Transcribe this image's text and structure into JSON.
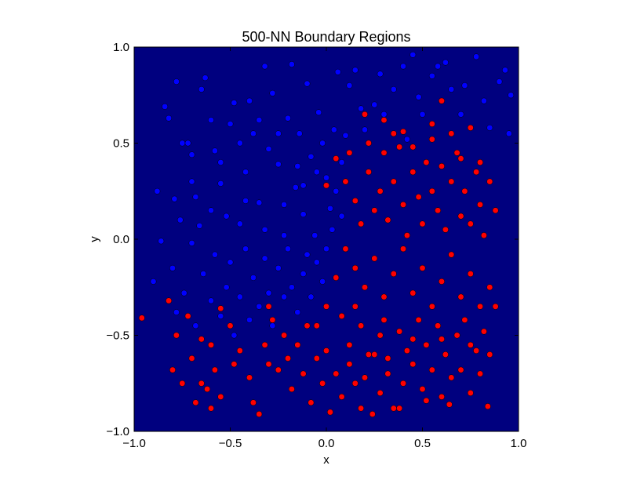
{
  "chart_data": {
    "type": "scatter",
    "title": "500-NN Boundary Regions",
    "xlabel": "x",
    "ylabel": "y",
    "xlim": [
      -1.0,
      1.0
    ],
    "ylim": [
      -1.0,
      1.0
    ],
    "xticks": [
      "−1.0",
      "−0.5",
      "0.0",
      "0.5",
      "1.0"
    ],
    "yticks": [
      "−1.0",
      "−0.5",
      "0.0",
      "0.5",
      "1.0"
    ],
    "background_color": "#00007f",
    "grid": false,
    "series": [
      {
        "color": "#0000ff",
        "points": [
          [
            -0.88,
            0.25
          ],
          [
            -0.84,
            0.69
          ],
          [
            -0.82,
            0.63
          ],
          [
            -0.79,
            0.21
          ],
          [
            -0.78,
            0.82
          ],
          [
            -0.75,
            0.5
          ],
          [
            -0.72,
            0.5
          ],
          [
            -0.7,
            0.44
          ],
          [
            -0.68,
            0.22
          ],
          [
            -0.66,
            0.07
          ],
          [
            -0.65,
            0.78
          ],
          [
            -0.63,
            0.84
          ],
          [
            -0.6,
            0.62
          ],
          [
            -0.58,
            0.46
          ],
          [
            -0.55,
            0.29
          ],
          [
            -0.52,
            0.12
          ],
          [
            -0.5,
            0.6
          ],
          [
            -0.48,
            0.71
          ],
          [
            -0.45,
            0.08
          ],
          [
            -0.42,
            0.35
          ],
          [
            -0.4,
            0.72
          ],
          [
            -0.38,
            0.55
          ],
          [
            -0.35,
            0.19
          ],
          [
            -0.32,
            0.9
          ],
          [
            -0.3,
            0.47
          ],
          [
            -0.28,
            0.76
          ],
          [
            -0.25,
            0.39
          ],
          [
            -0.22,
            0.02
          ],
          [
            -0.2,
            0.63
          ],
          [
            -0.18,
            0.91
          ],
          [
            -0.16,
            0.27
          ],
          [
            -0.14,
            0.55
          ],
          [
            -0.12,
            0.13
          ],
          [
            -0.1,
            0.81
          ],
          [
            -0.08,
            0.43
          ],
          [
            -0.06,
            0.02
          ],
          [
            -0.04,
            0.66
          ],
          [
            -0.02,
            0.5
          ],
          [
            0.0,
            0.32
          ],
          [
            0.02,
            0.16
          ],
          [
            0.04,
            0.57
          ],
          [
            0.06,
            0.87
          ],
          [
            0.08,
            0.4
          ],
          [
            0.1,
            0.54
          ],
          [
            0.12,
            0.8
          ],
          [
            0.15,
            0.88
          ],
          [
            0.18,
            0.68
          ],
          [
            0.2,
            0.57
          ],
          [
            0.25,
            0.7
          ],
          [
            0.28,
            0.86
          ],
          [
            0.3,
            0.65
          ],
          [
            0.35,
            0.78
          ],
          [
            0.4,
            0.9
          ],
          [
            0.42,
            0.52
          ],
          [
            0.45,
            0.96
          ],
          [
            0.48,
            0.74
          ],
          [
            0.5,
            0.65
          ],
          [
            0.55,
            0.85
          ],
          [
            0.58,
            0.9
          ],
          [
            0.62,
            0.92
          ],
          [
            0.65,
            0.78
          ],
          [
            0.7,
            0.65
          ],
          [
            0.72,
            0.8
          ],
          [
            0.78,
            0.95
          ],
          [
            0.82,
            0.72
          ],
          [
            0.85,
            0.58
          ],
          [
            0.9,
            0.82
          ],
          [
            0.93,
            0.88
          ],
          [
            0.95,
            0.55
          ],
          [
            0.96,
            0.75
          ],
          [
            -0.9,
            -0.22
          ],
          [
            -0.86,
            -0.01
          ],
          [
            -0.8,
            -0.15
          ],
          [
            -0.78,
            -0.38
          ],
          [
            -0.74,
            -0.28
          ],
          [
            -0.7,
            -0.02
          ],
          [
            -0.68,
            -0.45
          ],
          [
            -0.64,
            -0.18
          ],
          [
            -0.6,
            -0.32
          ],
          [
            -0.58,
            -0.08
          ],
          [
            -0.55,
            -0.4
          ],
          [
            -0.52,
            -0.25
          ],
          [
            -0.5,
            -0.12
          ],
          [
            -0.48,
            -0.5
          ],
          [
            -0.45,
            -0.3
          ],
          [
            -0.42,
            -0.05
          ],
          [
            -0.4,
            -0.42
          ],
          [
            -0.38,
            -0.2
          ],
          [
            -0.35,
            -0.35
          ],
          [
            -0.32,
            -0.1
          ],
          [
            -0.3,
            -0.28
          ],
          [
            -0.28,
            -0.45
          ],
          [
            -0.25,
            -0.15
          ],
          [
            -0.22,
            -0.3
          ],
          [
            -0.2,
            -0.05
          ],
          [
            -0.18,
            -0.25
          ],
          [
            -0.15,
            -0.38
          ],
          [
            -0.12,
            -0.18
          ],
          [
            -0.1,
            -0.08
          ],
          [
            -0.08,
            -0.3
          ],
          [
            -0.05,
            -0.12
          ],
          [
            -0.02,
            -0.22
          ],
          [
            0.0,
            -0.05
          ],
          [
            0.03,
            0.05
          ],
          [
            -0.55,
            0.4
          ],
          [
            -0.6,
            0.15
          ],
          [
            -0.45,
            0.5
          ],
          [
            -0.35,
            0.62
          ],
          [
            -0.25,
            0.55
          ],
          [
            -0.15,
            0.38
          ],
          [
            -0.05,
            0.35
          ],
          [
            0.05,
            0.25
          ],
          [
            -0.42,
            0.2
          ],
          [
            -0.32,
            0.05
          ],
          [
            -0.22,
            0.18
          ],
          [
            -0.12,
            0.28
          ],
          [
            0.08,
            0.12
          ],
          [
            0.1,
            0.3
          ],
          [
            -0.7,
            0.3
          ],
          [
            -0.76,
            0.1
          ]
        ]
      },
      {
        "color": "#ff0000",
        "points": [
          [
            0.05,
            0.42
          ],
          [
            0.1,
            0.3
          ],
          [
            0.15,
            0.2
          ],
          [
            0.18,
            0.08
          ],
          [
            0.22,
            0.35
          ],
          [
            0.25,
            0.15
          ],
          [
            0.28,
            0.25
          ],
          [
            0.3,
            0.45
          ],
          [
            0.32,
            0.1
          ],
          [
            0.35,
            0.3
          ],
          [
            0.38,
            0.48
          ],
          [
            0.4,
            0.18
          ],
          [
            0.42,
            0.02
          ],
          [
            0.45,
            0.35
          ],
          [
            0.48,
            0.22
          ],
          [
            0.5,
            0.08
          ],
          [
            0.52,
            0.4
          ],
          [
            0.55,
            0.25
          ],
          [
            0.58,
            0.15
          ],
          [
            0.6,
            0.38
          ],
          [
            0.62,
            0.05
          ],
          [
            0.65,
            0.3
          ],
          [
            0.68,
            0.45
          ],
          [
            0.7,
            0.12
          ],
          [
            0.72,
            0.25
          ],
          [
            0.75,
            0.08
          ],
          [
            0.78,
            0.35
          ],
          [
            0.8,
            0.18
          ],
          [
            0.82,
            0.02
          ],
          [
            0.85,
            0.3
          ],
          [
            0.88,
            0.15
          ],
          [
            0.22,
            0.5
          ],
          [
            0.4,
            0.56
          ],
          [
            0.55,
            0.6
          ],
          [
            0.6,
            0.72
          ],
          [
            0.2,
            0.65
          ],
          [
            0.1,
            -0.05
          ],
          [
            0.15,
            -0.15
          ],
          [
            0.2,
            -0.25
          ],
          [
            0.25,
            -0.1
          ],
          [
            0.3,
            -0.3
          ],
          [
            0.35,
            -0.18
          ],
          [
            0.4,
            -0.05
          ],
          [
            0.45,
            -0.28
          ],
          [
            0.5,
            -0.15
          ],
          [
            0.55,
            -0.35
          ],
          [
            0.6,
            -0.22
          ],
          [
            0.65,
            -0.08
          ],
          [
            0.7,
            -0.3
          ],
          [
            0.75,
            -0.18
          ],
          [
            0.8,
            -0.35
          ],
          [
            0.85,
            -0.25
          ],
          [
            0.05,
            -0.2
          ],
          [
            0.0,
            -0.35
          ],
          [
            -0.05,
            -0.45
          ],
          [
            0.08,
            -0.4
          ],
          [
            0.12,
            -0.55
          ],
          [
            0.18,
            -0.45
          ],
          [
            0.22,
            -0.6
          ],
          [
            0.28,
            -0.5
          ],
          [
            0.32,
            -0.62
          ],
          [
            0.38,
            -0.48
          ],
          [
            0.42,
            -0.58
          ],
          [
            0.48,
            -0.42
          ],
          [
            0.52,
            -0.55
          ],
          [
            0.58,
            -0.45
          ],
          [
            0.62,
            -0.6
          ],
          [
            0.68,
            -0.5
          ],
          [
            0.72,
            -0.42
          ],
          [
            0.78,
            -0.58
          ],
          [
            0.82,
            -0.48
          ],
          [
            0.88,
            -0.35
          ],
          [
            0.85,
            -0.6
          ],
          [
            -0.96,
            -0.41
          ],
          [
            -0.82,
            -0.32
          ],
          [
            -0.8,
            -0.68
          ],
          [
            -0.78,
            -0.5
          ],
          [
            -0.75,
            -0.75
          ],
          [
            -0.72,
            -0.4
          ],
          [
            -0.7,
            -0.62
          ],
          [
            -0.68,
            -0.85
          ],
          [
            -0.65,
            -0.52
          ],
          [
            -0.62,
            -0.78
          ],
          [
            -0.6,
            -0.88
          ],
          [
            -0.58,
            -0.68
          ],
          [
            -0.55,
            -0.82
          ],
          [
            -0.55,
            -0.36
          ],
          [
            -0.5,
            -0.45
          ],
          [
            -0.45,
            -0.58
          ],
          [
            -0.4,
            -0.72
          ],
          [
            -0.38,
            -0.85
          ],
          [
            -0.35,
            -0.91
          ],
          [
            -0.32,
            -0.55
          ],
          [
            -0.3,
            -0.65
          ],
          [
            -0.28,
            -0.42
          ],
          [
            -0.25,
            -0.68
          ],
          [
            -0.22,
            -0.5
          ],
          [
            -0.2,
            -0.62
          ],
          [
            -0.18,
            -0.78
          ],
          [
            -0.15,
            -0.55
          ],
          [
            -0.12,
            -0.7
          ],
          [
            -0.1,
            -0.45
          ],
          [
            -0.08,
            -0.85
          ],
          [
            -0.05,
            -0.62
          ],
          [
            -0.02,
            -0.75
          ],
          [
            0.0,
            -0.58
          ],
          [
            0.05,
            -0.7
          ],
          [
            0.08,
            -0.82
          ],
          [
            0.12,
            -0.65
          ],
          [
            0.15,
            -0.75
          ],
          [
            0.18,
            -0.88
          ],
          [
            0.2,
            -0.72
          ],
          [
            0.25,
            -0.6
          ],
          [
            0.28,
            -0.8
          ],
          [
            0.32,
            -0.7
          ],
          [
            0.35,
            -0.88
          ],
          [
            0.4,
            -0.75
          ],
          [
            0.45,
            -0.65
          ],
          [
            0.5,
            -0.78
          ],
          [
            0.55,
            -0.68
          ],
          [
            0.6,
            -0.82
          ],
          [
            0.65,
            -0.72
          ],
          [
            0.7,
            -0.68
          ],
          [
            0.75,
            -0.8
          ],
          [
            0.8,
            -0.7
          ],
          [
            0.84,
            -0.87
          ],
          [
            0.02,
            -0.9
          ],
          [
            0.24,
            -0.91
          ],
          [
            0.38,
            -0.88
          ],
          [
            0.52,
            -0.84
          ],
          [
            0.64,
            -0.86
          ],
          [
            0.75,
            -0.55
          ],
          [
            0.6,
            -0.52
          ],
          [
            0.45,
            -0.52
          ],
          [
            0.3,
            -0.42
          ],
          [
            0.15,
            -0.35
          ],
          [
            -0.3,
            -0.35
          ],
          [
            -0.6,
            -0.55
          ],
          [
            -0.65,
            -0.75
          ],
          [
            -0.48,
            -0.65
          ],
          [
            0.0,
            0.28
          ],
          [
            0.12,
            0.45
          ],
          [
            0.3,
            0.62
          ],
          [
            0.45,
            0.48
          ],
          [
            0.55,
            0.52
          ],
          [
            0.65,
            0.55
          ],
          [
            0.7,
            0.42
          ],
          [
            0.75,
            0.58
          ],
          [
            0.8,
            0.4
          ],
          [
            0.35,
            0.55
          ]
        ]
      }
    ]
  }
}
